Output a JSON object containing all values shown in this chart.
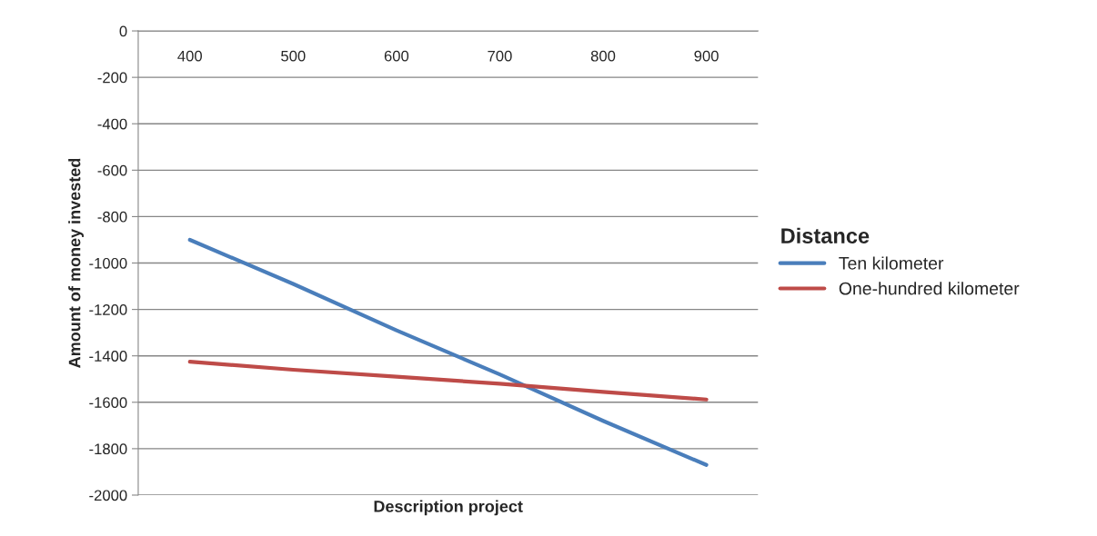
{
  "chart_data": {
    "type": "line",
    "xlabel": "Description project",
    "ylabel": "Amount of money invested",
    "legend_title": "Distance",
    "categories": [
      "400",
      "500",
      "600",
      "700",
      "800",
      "900"
    ],
    "series": [
      {
        "name": "Ten kilometer",
        "color": "#4a7ebb",
        "values": [
          -900,
          -1090,
          -1290,
          -1480,
          -1680,
          -1870
        ]
      },
      {
        "name": "One-hundred kilometer",
        "color": "#be4b48",
        "values": [
          -1425,
          -1460,
          -1490,
          -1520,
          -1555,
          -1588
        ]
      }
    ],
    "ylim": [
      -2000,
      0
    ],
    "yticks": [
      0,
      -200,
      -400,
      -600,
      -800,
      -1000,
      -1200,
      -1400,
      -1600,
      -1800,
      -2000
    ],
    "grid": "y",
    "legend": "right",
    "marker": "none",
    "line_style": "solid"
  }
}
